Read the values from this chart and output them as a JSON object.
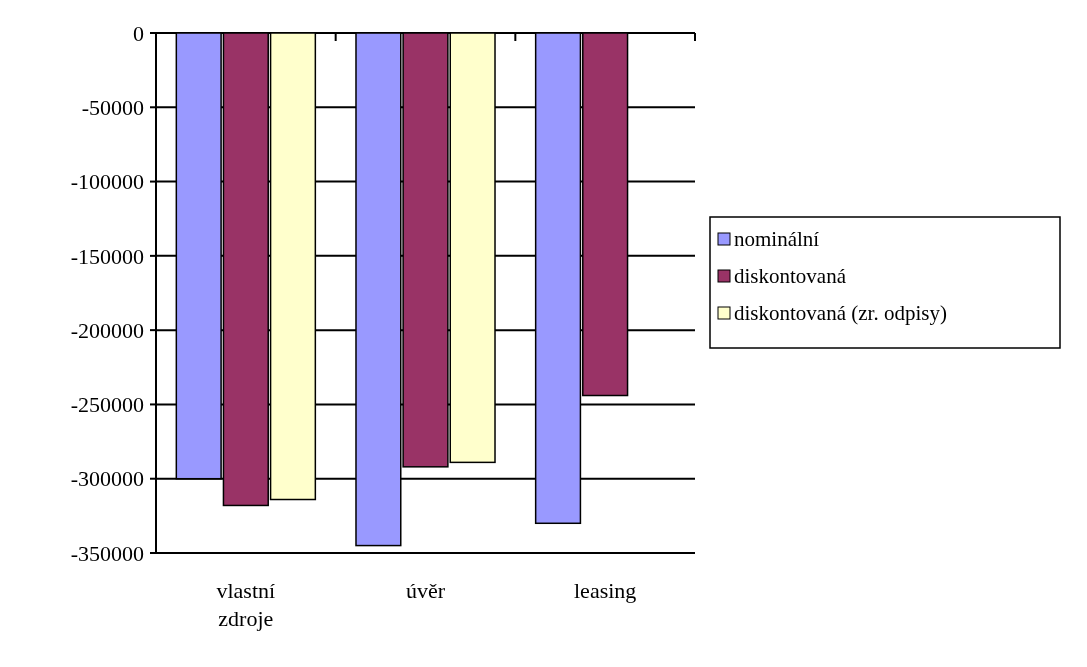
{
  "chart_data": {
    "type": "bar",
    "categories": [
      "vlastní zdroje",
      "úvěr",
      "leasing"
    ],
    "series": [
      {
        "name": "nominální",
        "color": "#9999ff",
        "values": [
          -300000,
          -345000,
          -330000
        ]
      },
      {
        "name": "diskontovaná",
        "color": "#993366",
        "values": [
          -318000,
          -292000,
          -244000
        ]
      },
      {
        "name": "diskontovaná (zr. odpisy)",
        "color": "#ffffcc",
        "values": [
          -314000,
          -289000,
          null
        ]
      }
    ],
    "ylim": [
      -350000,
      0
    ],
    "yticks": [
      0,
      -50000,
      -100000,
      -150000,
      -200000,
      -250000,
      -300000,
      -350000
    ],
    "grid": "y",
    "legend": "right"
  }
}
